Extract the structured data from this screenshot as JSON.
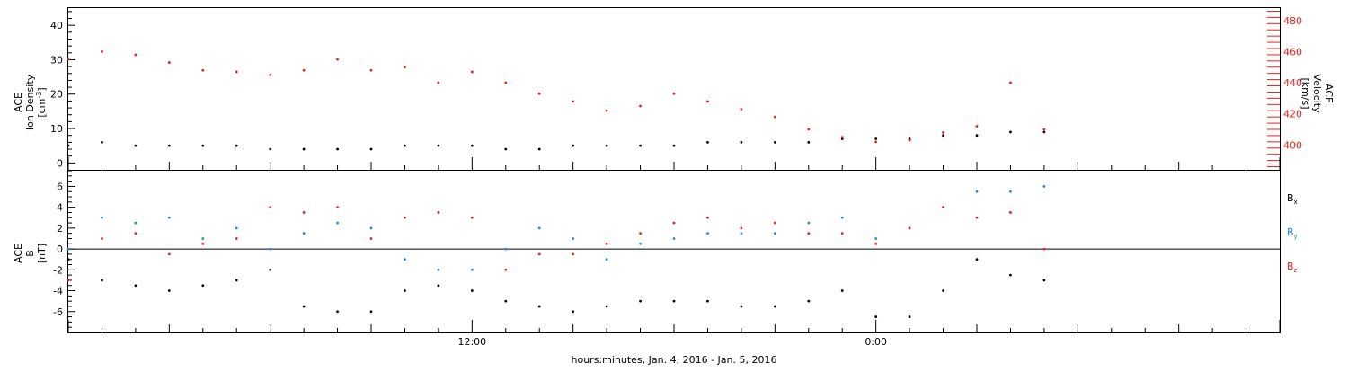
{
  "colors": {
    "black": "#000000",
    "red": "#e8221a",
    "blue": "#1e88e5"
  },
  "xaxis": {
    "title": "hours:minutes, Jan.  4, 2016 - Jan.  5, 2016",
    "ticks": [
      {
        "label": "12:00",
        "hour": 12
      },
      {
        "label": "0:00",
        "hour": 24
      }
    ],
    "range_hours": [
      0,
      36
    ]
  },
  "chart_data": [
    {
      "type": "scatter",
      "panel": "top",
      "ylabel_left": [
        "ACE",
        "Ion Density",
        "[cm",
        "-3",
        "]"
      ],
      "ylabel_right": [
        "ACE",
        "Velocity",
        "[km/s]"
      ],
      "yticks_left": [
        "0",
        "10",
        "20",
        "30",
        "40"
      ],
      "yticks_right": [
        "400",
        "420",
        "440",
        "460",
        "480"
      ],
      "ylim_left": [
        -2,
        45
      ],
      "ylim_right": [
        384,
        488
      ],
      "series": [
        {
          "axis": "left",
          "color": "black",
          "points": [
            [
              0,
              5
            ],
            [
              1,
              6
            ],
            [
              2,
              5
            ],
            [
              3,
              5
            ],
            [
              4,
              5
            ],
            [
              5,
              5
            ],
            [
              6,
              4
            ],
            [
              7,
              4
            ],
            [
              8,
              4
            ],
            [
              9,
              4
            ],
            [
              10,
              5
            ],
            [
              11,
              5
            ],
            [
              12,
              5
            ],
            [
              13,
              4
            ],
            [
              14,
              4
            ],
            [
              15,
              5
            ],
            [
              16,
              5
            ],
            [
              17,
              5
            ],
            [
              18,
              5
            ],
            [
              19,
              6
            ],
            [
              20,
              6
            ],
            [
              21,
              6
            ],
            [
              22,
              6
            ],
            [
              23,
              7
            ],
            [
              24,
              7
            ],
            [
              25,
              7
            ],
            [
              26,
              8
            ],
            [
              27,
              8
            ],
            [
              28,
              9
            ],
            [
              29,
              9
            ]
          ]
        },
        {
          "axis": "right",
          "color": "red",
          "points": [
            [
              0,
              455
            ],
            [
              1,
              460
            ],
            [
              2,
              458
            ],
            [
              3,
              453
            ],
            [
              4,
              448
            ],
            [
              5,
              447
            ],
            [
              6,
              445
            ],
            [
              7,
              448
            ],
            [
              8,
              455
            ],
            [
              9,
              448
            ],
            [
              10,
              450
            ],
            [
              11,
              440
            ],
            [
              12,
              447
            ],
            [
              13,
              440
            ],
            [
              14,
              433
            ],
            [
              15,
              428
            ],
            [
              16,
              422
            ],
            [
              17,
              425
            ],
            [
              18,
              433
            ],
            [
              19,
              428
            ],
            [
              20,
              423
            ],
            [
              21,
              418
            ],
            [
              22,
              410
            ],
            [
              23,
              405
            ],
            [
              24,
              402
            ],
            [
              25,
              403
            ],
            [
              26,
              408
            ],
            [
              27,
              412
            ],
            [
              28,
              440
            ],
            [
              29,
              410
            ]
          ]
        }
      ]
    },
    {
      "type": "scatter",
      "panel": "bottom",
      "ylabel_left": [
        "ACE",
        "B",
        "[nT]"
      ],
      "yticks_left": [
        "-6",
        "-4",
        "-2",
        "0",
        "2",
        "4",
        "6"
      ],
      "ylim_left": [
        -8,
        7.5
      ],
      "legend_labels": [
        "B",
        "B",
        "B"
      ],
      "legend_subscripts": [
        "x",
        "y",
        "z"
      ],
      "legend_placement": "right",
      "series": [
        {
          "axis": "left",
          "color": "black",
          "points": [
            [
              0,
              -1
            ],
            [
              1,
              -3
            ],
            [
              2,
              -3.5
            ],
            [
              3,
              -4
            ],
            [
              4,
              -3.5
            ],
            [
              5,
              -3
            ],
            [
              6,
              -2
            ],
            [
              7,
              -5.5
            ],
            [
              8,
              -6
            ],
            [
              9,
              -6
            ],
            [
              10,
              -4
            ],
            [
              11,
              -3.5
            ],
            [
              12,
              -4
            ],
            [
              13,
              -5
            ],
            [
              14,
              -5.5
            ],
            [
              15,
              -6
            ],
            [
              16,
              -5.5
            ],
            [
              17,
              -5
            ],
            [
              18,
              -5
            ],
            [
              19,
              -5
            ],
            [
              20,
              -5.5
            ],
            [
              21,
              -5.5
            ],
            [
              22,
              -5
            ],
            [
              23,
              -4
            ],
            [
              24,
              -6.5
            ],
            [
              25,
              -6.5
            ],
            [
              26,
              -4
            ],
            [
              27,
              -1
            ],
            [
              28,
              -2.5
            ],
            [
              29,
              -3
            ]
          ]
        },
        {
          "axis": "left",
          "color": "blue",
          "points": [
            [
              0,
              0
            ],
            [
              1,
              3
            ],
            [
              2,
              2.5
            ],
            [
              3,
              3
            ],
            [
              4,
              1
            ],
            [
              5,
              2
            ],
            [
              6,
              0
            ],
            [
              7,
              1.5
            ],
            [
              8,
              2.5
            ],
            [
              9,
              2
            ],
            [
              10,
              -1
            ],
            [
              11,
              -2
            ],
            [
              12,
              -2
            ],
            [
              13,
              0
            ],
            [
              14,
              2
            ],
            [
              15,
              1
            ],
            [
              16,
              -1
            ],
            [
              17,
              0.5
            ],
            [
              18,
              1
            ],
            [
              19,
              1.5
            ],
            [
              20,
              1.5
            ],
            [
              21,
              1.5
            ],
            [
              22,
              2.5
            ],
            [
              23,
              3
            ],
            [
              24,
              1
            ],
            [
              25,
              2
            ],
            [
              26,
              4
            ],
            [
              27,
              5.5
            ],
            [
              28,
              5.5
            ],
            [
              29,
              6
            ]
          ]
        },
        {
          "axis": "left",
          "color": "red",
          "points": [
            [
              0,
              -3
            ],
            [
              1,
              1
            ],
            [
              2,
              1.5
            ],
            [
              3,
              -0.5
            ],
            [
              4,
              0.5
            ],
            [
              5,
              1
            ],
            [
              6,
              4
            ],
            [
              7,
              3.5
            ],
            [
              8,
              4
            ],
            [
              9,
              1
            ],
            [
              10,
              3
            ],
            [
              11,
              3.5
            ],
            [
              12,
              3
            ],
            [
              13,
              -2
            ],
            [
              14,
              -0.5
            ],
            [
              15,
              -0.5
            ],
            [
              16,
              0.5
            ],
            [
              17,
              1.5
            ],
            [
              18,
              2.5
            ],
            [
              19,
              3
            ],
            [
              20,
              2
            ],
            [
              21,
              2.5
            ],
            [
              22,
              1.5
            ],
            [
              23,
              1.5
            ],
            [
              24,
              0.5
            ],
            [
              25,
              2
            ],
            [
              26,
              4
            ],
            [
              27,
              3
            ],
            [
              28,
              3.5
            ],
            [
              29,
              0
            ]
          ]
        }
      ]
    }
  ]
}
